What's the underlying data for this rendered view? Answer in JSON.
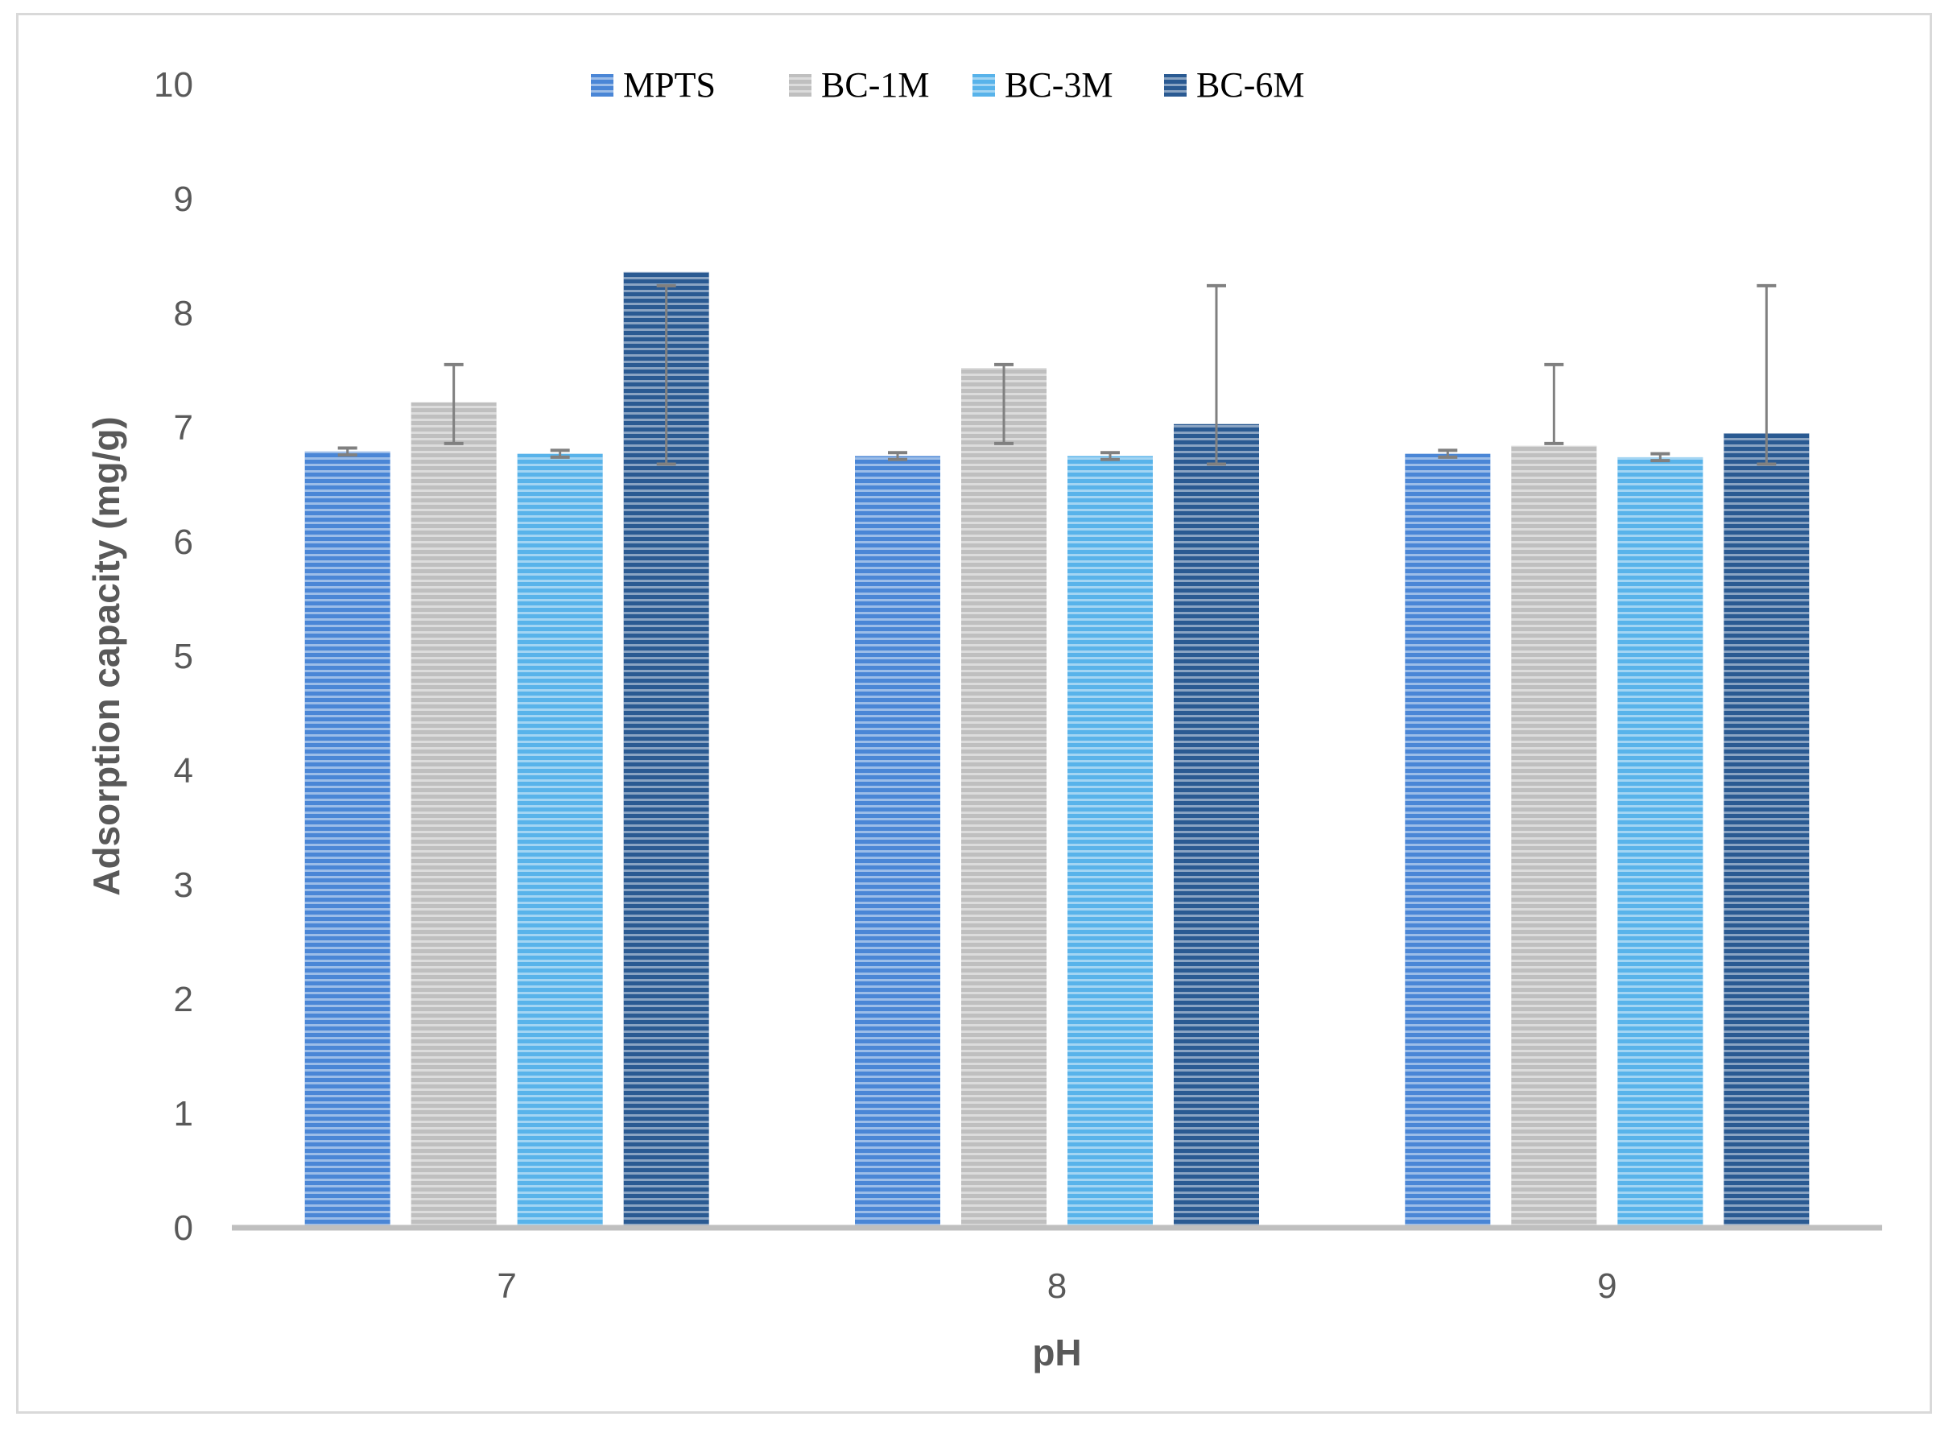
{
  "chart_data": {
    "type": "bar",
    "title": "",
    "xlabel": "pH",
    "ylabel": "Adsorption capacity (mg/g)",
    "ylim": [
      0,
      10
    ],
    "yticks": [
      0,
      1,
      2,
      3,
      4,
      5,
      6,
      7,
      8,
      9,
      10
    ],
    "categories": [
      "7",
      "8",
      "9"
    ],
    "grid": false,
    "legend_position": "top",
    "series": [
      {
        "name": "MPTS",
        "color": "#4a86d6",
        "values": [
          6.79,
          6.75,
          6.77
        ],
        "error": [
          0.03,
          0.03,
          0.03
        ]
      },
      {
        "name": "BC-1M",
        "color": "#bfbfbf",
        "values": [
          7.22,
          7.52,
          6.84
        ],
        "error_low": [
          6.86,
          6.86,
          6.86
        ],
        "error_high": [
          7.55,
          7.55,
          7.55
        ]
      },
      {
        "name": "BC-3M",
        "color": "#58b3ea",
        "values": [
          6.77,
          6.75,
          6.74
        ],
        "error": [
          0.03,
          0.03,
          0.03
        ]
      },
      {
        "name": "BC-6M",
        "color": "#2a5a92",
        "values": [
          8.36,
          7.03,
          6.95
        ],
        "error_low": [
          6.68,
          6.68,
          6.68
        ],
        "error_high": [
          8.24,
          8.24,
          8.24
        ]
      }
    ]
  }
}
